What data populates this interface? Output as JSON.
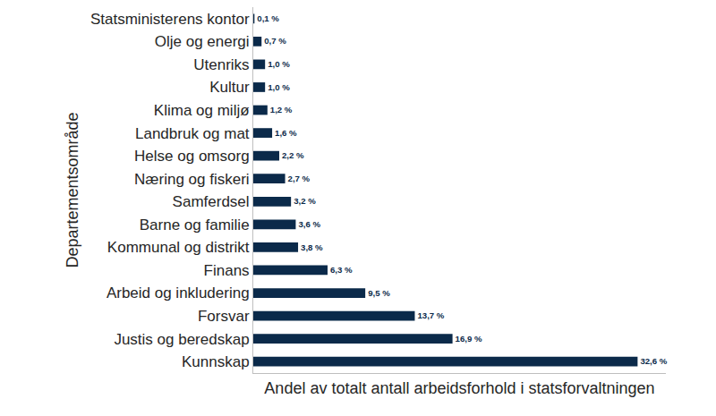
{
  "chart_data": {
    "type": "bar",
    "orientation": "horizontal",
    "x_label": "Andel av totalt antall arbeidsforhold i statsforvaltningen",
    "y_label": "Departementsområde",
    "categories": [
      "Statsministerens kontor",
      "Olje og energi",
      "Utenriks",
      "Kultur",
      "Klima og miljø",
      "Landbruk og mat",
      "Helse og omsorg",
      "Næring og fiskeri",
      "Samferdsel",
      "Barne og familie",
      "Kommunal og distrikt",
      "Finans",
      "Arbeid og inkludering",
      "Forsvar",
      "Justis og beredskap",
      "Kunnskap"
    ],
    "values": [
      0.1,
      0.7,
      1.0,
      1.0,
      1.2,
      1.6,
      2.2,
      2.7,
      3.2,
      3.6,
      3.8,
      6.3,
      9.5,
      13.7,
      16.9,
      32.6
    ],
    "value_labels": [
      "0,1 %",
      "0,7 %",
      "1,0 %",
      "1,0 %",
      "1,2 %",
      "1,6 %",
      "2,2 %",
      "2,7 %",
      "3,2 %",
      "3,6 %",
      "3,8 %",
      "6,3 %",
      "9,5 %",
      "13,7 %",
      "16,9 %",
      "32,6 %"
    ],
    "color": "#0b2a4a",
    "xlim": [
      0,
      35
    ],
    "grid": false,
    "data_labels": true,
    "tick_labels": "y"
  }
}
